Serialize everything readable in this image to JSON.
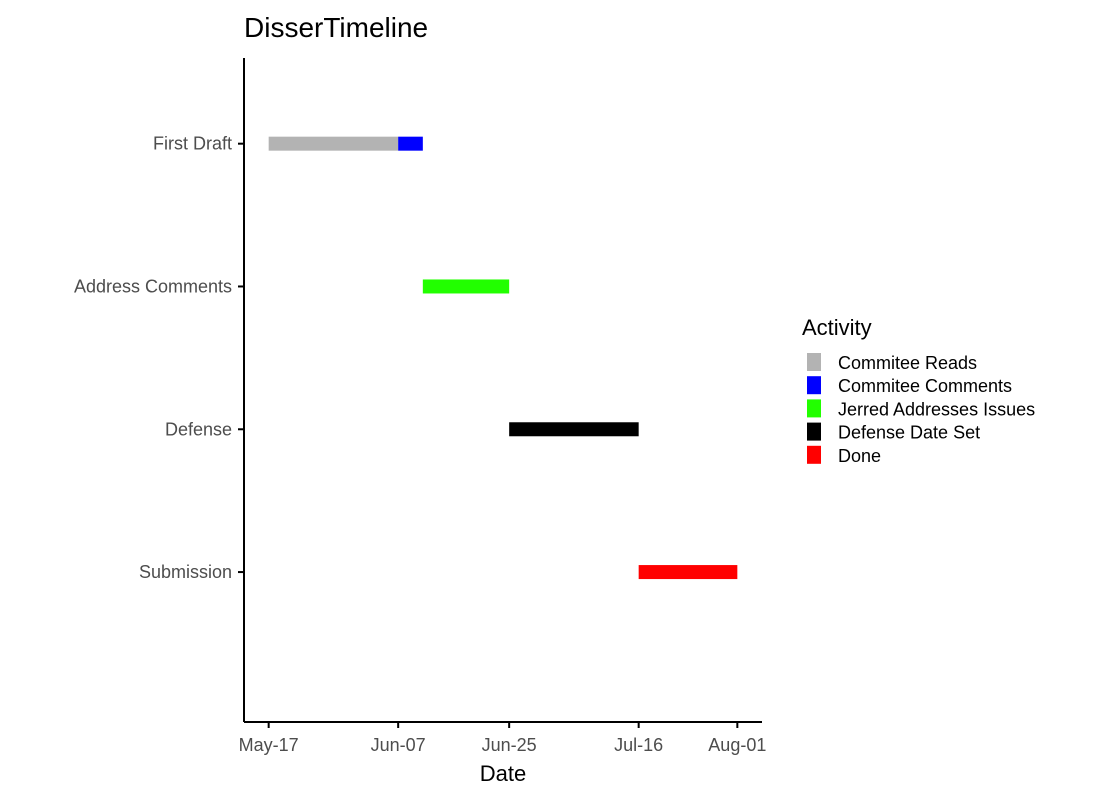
{
  "chart_data": {
    "type": "gantt",
    "title": "DisserTimeline",
    "xlabel": "Date",
    "ylabel": "",
    "xlim": [
      "2019-05-13",
      "2019-08-05"
    ],
    "x_ticks": [
      {
        "date": "2019-05-17",
        "label": "May-17"
      },
      {
        "date": "2019-06-07",
        "label": "Jun-07"
      },
      {
        "date": "2019-06-25",
        "label": "Jun-25"
      },
      {
        "date": "2019-07-16",
        "label": "Jul-16"
      },
      {
        "date": "2019-08-01",
        "label": "Aug-01"
      }
    ],
    "categories": [
      "First Draft",
      "Address Comments",
      "Defense",
      "Submission"
    ],
    "legend": {
      "title": "Activity",
      "placement": "right",
      "entries": [
        {
          "name": "Commitee Reads",
          "color": "#b3b3b3"
        },
        {
          "name": "Commitee Comments",
          "color": "#0000ff"
        },
        {
          "name": "Jerred Addresses Issues",
          "color": "#22ff00"
        },
        {
          "name": "Defense Date Set",
          "color": "#000000"
        },
        {
          "name": "Done",
          "color": "#ff0000"
        }
      ]
    },
    "tasks": [
      {
        "category": "First Draft",
        "activity": "Commitee Reads",
        "start": "2019-05-17",
        "end": "2019-06-07"
      },
      {
        "category": "First Draft",
        "activity": "Commitee Comments",
        "start": "2019-06-07",
        "end": "2019-06-11"
      },
      {
        "category": "Address Comments",
        "activity": "Jerred Addresses Issues",
        "start": "2019-06-11",
        "end": "2019-06-25"
      },
      {
        "category": "Defense",
        "activity": "Defense Date Set",
        "start": "2019-06-25",
        "end": "2019-07-16"
      },
      {
        "category": "Submission",
        "activity": "Done",
        "start": "2019-07-16",
        "end": "2019-08-01"
      }
    ],
    "grid": false
  }
}
